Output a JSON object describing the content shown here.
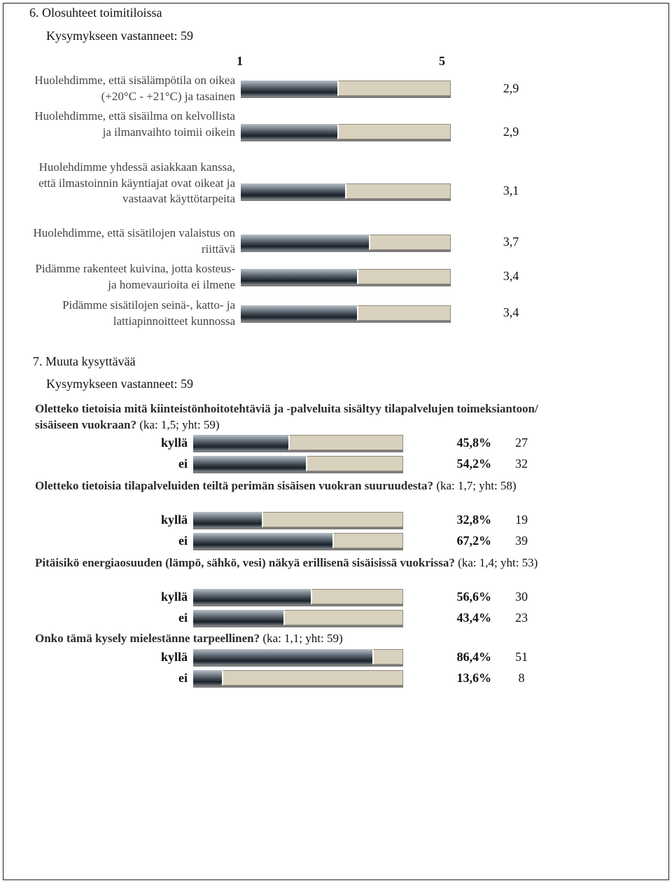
{
  "section6": {
    "title": "6. Olosuhteet toimitiloissa",
    "respondents": "Kysymykseen vastanneet: 59",
    "scale_min": "1",
    "scale_max": "5",
    "items": [
      {
        "label": "Huolehdimme, että sisälämpötila on oikea (+20°C - +21°C) ja tasainen",
        "value": 2.9,
        "display": "2,9"
      },
      {
        "label": "Huolehdimme, että sisäilma on kelvollista ja ilmanvaihto toimii oikein",
        "value": 2.9,
        "display": "2,9"
      },
      {
        "label": "Huolehdimme yhdessä asiakkaan kanssa, että ilmastoinnin käyntiajat ovat oikeat ja vastaavat käyttötarpeita",
        "value": 3.1,
        "display": "3,1"
      },
      {
        "label": "Huolehdimme, että sisätilojen valaistus on riittävä",
        "value": 3.7,
        "display": "3,7"
      },
      {
        "label": "Pidämme rakenteet kuivina, jotta kosteus- ja homevaurioita ei ilmene",
        "value": 3.4,
        "display": "3,4"
      },
      {
        "label": "Pidämme sisätilojen seinä-, katto- ja lattiapinnoitteet kunnossa",
        "value": 3.4,
        "display": "3,4"
      }
    ]
  },
  "section7": {
    "title": "7. Muuta kysyttävää",
    "respondents": "Kysymykseen vastanneet: 59",
    "questions": [
      {
        "text": "Oletteko tietoisia mitä kiinteistönhoitotehtäviä ja -palveluita sisältyy tilapalvelujen toimeksiantoon/ sisäiseen vuokraan?",
        "meta": " (ka: 1,5; yht: 59)",
        "options": [
          {
            "label": "kyllä",
            "percent": 45.8,
            "percent_text": "45,8%",
            "count": "27"
          },
          {
            "label": "ei",
            "percent": 54.2,
            "percent_text": "54,2%",
            "count": "32"
          }
        ]
      },
      {
        "text": "Oletteko tietoisia tilapalveluiden teiltä perimän sisäisen vuokran suuruudesta?",
        "meta": " (ka: 1,7; yht: 58)",
        "options": [
          {
            "label": "kyllä",
            "percent": 32.8,
            "percent_text": "32,8%",
            "count": "19"
          },
          {
            "label": "ei",
            "percent": 67.2,
            "percent_text": "67,2%",
            "count": "39"
          }
        ]
      },
      {
        "text": "Pitäisikö energiaosuuden (lämpö, sähkö, vesi) näkyä erillisenä sisäisissä vuokrissa?",
        "meta": " (ka: 1,4; yht: 53)",
        "options": [
          {
            "label": "kyllä",
            "percent": 56.6,
            "percent_text": "56,6%",
            "count": "30"
          },
          {
            "label": "ei",
            "percent": 43.4,
            "percent_text": "43,4%",
            "count": "23"
          }
        ]
      },
      {
        "text": "Onko tämä kysely mielestänne tarpeellinen?",
        "meta": " (ka: 1,1; yht: 59)",
        "options": [
          {
            "label": "kyllä",
            "percent": 86.4,
            "percent_text": "86,4%",
            "count": "51"
          },
          {
            "label": "ei",
            "percent": 13.6,
            "percent_text": "13,6%",
            "count": "8"
          }
        ]
      }
    ]
  },
  "colors": {
    "bar_dark": "#3c454e",
    "bar_light": "#d8d1bd",
    "frame": "#222222"
  }
}
